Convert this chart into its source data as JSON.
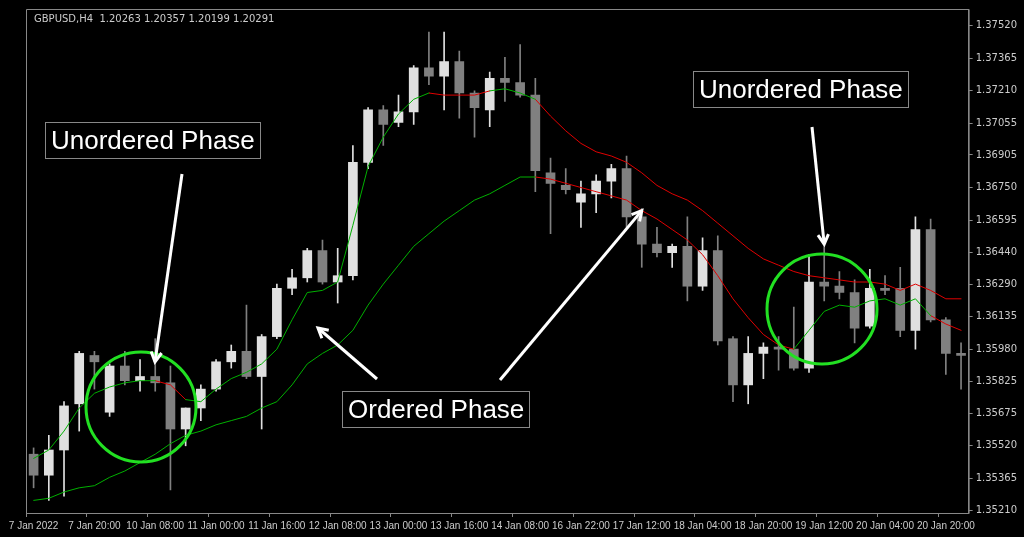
{
  "chart_data": {
    "type": "candlestick",
    "title": "GBPUSD,H4  1.20263 1.20357 1.20199 1.20291",
    "categories": [
      "7 Jan 2022",
      null,
      null,
      null,
      "7 Jan 20:00",
      null,
      null,
      null,
      "10 Jan 08:00",
      null,
      null,
      null,
      "11 Jan 00:00",
      null,
      null,
      null,
      "11 Jan 16:00",
      null,
      null,
      null,
      "12 Jan 08:00",
      null,
      null,
      null,
      "13 Jan 00:00",
      null,
      null,
      null,
      "13 Jan 16:00",
      null,
      null,
      null,
      "14 Jan 08:00",
      null,
      null,
      null,
      "16 Jan 22:00",
      null,
      null,
      null,
      "17 Jan 12:00",
      null,
      null,
      null,
      "18 Jan 04:00",
      null,
      null,
      null,
      "18 Jan 20:00",
      null,
      null,
      null,
      "19 Jan 12:00",
      null,
      null,
      null,
      "20 Jan 04:00",
      null,
      null,
      null,
      "20 Jan 20:00",
      null
    ],
    "ohlc": [
      [
        1.3548,
        1.3551,
        1.3532,
        1.3538
      ],
      [
        1.3538,
        1.3557,
        1.3526,
        1.355
      ],
      [
        1.355,
        1.3573,
        1.3528,
        1.3571
      ],
      [
        1.3572,
        1.3597,
        1.3559,
        1.3596
      ],
      [
        1.3595,
        1.3597,
        1.3579,
        1.3592
      ],
      [
        1.3568,
        1.3591,
        1.3566,
        1.359
      ],
      [
        1.359,
        1.3597,
        1.3581,
        1.3583
      ],
      [
        1.3583,
        1.3593,
        1.3578,
        1.3585
      ],
      [
        1.3585,
        1.3603,
        1.3578,
        1.3582
      ],
      [
        1.3582,
        1.359,
        1.3531,
        1.356
      ],
      [
        1.356,
        1.357,
        1.3552,
        1.357
      ],
      [
        1.357,
        1.3581,
        1.3564,
        1.3579
      ],
      [
        1.3579,
        1.3593,
        1.3578,
        1.3592
      ],
      [
        1.3592,
        1.36,
        1.3589,
        1.3597
      ],
      [
        1.3597,
        1.3619,
        1.3584,
        1.3585
      ],
      [
        1.3585,
        1.3605,
        1.356,
        1.3604
      ],
      [
        1.3604,
        1.3629,
        1.3603,
        1.3627
      ],
      [
        1.3627,
        1.3636,
        1.3624,
        1.3632
      ],
      [
        1.3632,
        1.3646,
        1.363,
        1.3645
      ],
      [
        1.3645,
        1.365,
        1.3629,
        1.363
      ],
      [
        1.363,
        1.3646,
        1.362,
        1.3633
      ],
      [
        1.3633,
        1.3695,
        1.3631,
        1.3687
      ],
      [
        1.3687,
        1.3713,
        1.3684,
        1.3712
      ],
      [
        1.3712,
        1.3714,
        1.3695,
        1.3705
      ],
      [
        1.3706,
        1.3719,
        1.3704,
        1.3711
      ],
      [
        1.3711,
        1.3733,
        1.3705,
        1.3732
      ],
      [
        1.3732,
        1.3749,
        1.3724,
        1.3728
      ],
      [
        1.3728,
        1.3749,
        1.3712,
        1.3735
      ],
      [
        1.3735,
        1.374,
        1.3708,
        1.372
      ],
      [
        1.372,
        1.3721,
        1.3699,
        1.3713
      ],
      [
        1.3712,
        1.373,
        1.3704,
        1.3727
      ],
      [
        1.3727,
        1.3737,
        1.3716,
        1.3725
      ],
      [
        1.3725,
        1.3743,
        1.3718,
        1.3719
      ],
      [
        1.3719,
        1.3727,
        1.3673,
        1.3683
      ],
      [
        1.3682,
        1.3689,
        1.3653,
        1.3677
      ],
      [
        1.3676,
        1.3684,
        1.3672,
        1.3674
      ],
      [
        1.3668,
        1.3678,
        1.3656,
        1.3672
      ],
      [
        1.3672,
        1.3681,
        1.3663,
        1.3678
      ],
      [
        1.3678,
        1.3686,
        1.367,
        1.3684
      ],
      [
        1.3684,
        1.369,
        1.3656,
        1.3661
      ],
      [
        1.3661,
        1.3665,
        1.3637,
        1.3648
      ],
      [
        1.3648,
        1.3656,
        1.3642,
        1.3644
      ],
      [
        1.3644,
        1.3648,
        1.3637,
        1.3647
      ],
      [
        1.3647,
        1.3661,
        1.3621,
        1.3628
      ],
      [
        1.3628,
        1.3651,
        1.3626,
        1.3645
      ],
      [
        1.3645,
        1.3652,
        1.36,
        1.3602
      ],
      [
        1.3603,
        1.3604,
        1.3573,
        1.3581
      ],
      [
        1.3581,
        1.3604,
        1.3572,
        1.3596
      ],
      [
        1.3596,
        1.3601,
        1.3584,
        1.3599
      ],
      [
        1.3599,
        1.3604,
        1.3588,
        1.3598
      ],
      [
        1.3598,
        1.3618,
        1.3588,
        1.3589
      ],
      [
        1.3589,
        1.3643,
        1.3587,
        1.363
      ],
      [
        1.363,
        1.3648,
        1.3621,
        1.3628
      ],
      [
        1.3628,
        1.3635,
        1.3622,
        1.3625
      ],
      [
        1.3625,
        1.3631,
        1.3601,
        1.3608
      ],
      [
        1.3609,
        1.3636,
        1.3608,
        1.3627
      ],
      [
        1.3627,
        1.3633,
        1.3624,
        1.3626
      ],
      [
        1.3627,
        1.3637,
        1.3604,
        1.3607
      ],
      [
        1.3607,
        1.3661,
        1.3598,
        1.3655
      ],
      [
        1.3655,
        1.366,
        1.3611,
        1.3612
      ],
      [
        1.3612,
        1.3613,
        1.3586,
        1.3596
      ],
      [
        1.3596,
        1.3601,
        1.3579,
        1.3595
      ]
    ],
    "colors": [
      "#808080",
      "#e0e0e0",
      "#e0e0e0",
      "#e0e0e0",
      "#808080",
      "#e0e0e0",
      "#808080",
      "#e0e0e0",
      "#808080",
      "#808080",
      "#e0e0e0",
      "#e0e0e0",
      "#e0e0e0",
      "#e0e0e0",
      "#808080",
      "#e0e0e0",
      "#e0e0e0",
      "#e0e0e0",
      "#e0e0e0",
      "#808080",
      "#e0e0e0",
      "#e0e0e0",
      "#e0e0e0",
      "#808080",
      "#e0e0e0",
      "#e0e0e0",
      "#808080",
      "#e0e0e0",
      "#808080",
      "#808080",
      "#e0e0e0",
      "#808080",
      "#808080",
      "#808080",
      "#808080",
      "#808080",
      "#e0e0e0",
      "#e0e0e0",
      "#e0e0e0",
      "#808080",
      "#808080",
      "#808080",
      "#e0e0e0",
      "#808080",
      "#e0e0e0",
      "#808080",
      "#808080",
      "#e0e0e0",
      "#e0e0e0",
      "#808080",
      "#808080",
      "#e0e0e0",
      "#808080",
      "#808080",
      "#808080",
      "#e0e0e0",
      "#808080",
      "#808080",
      "#e0e0e0",
      "#808080",
      "#808080",
      "#808080"
    ],
    "series": [
      {
        "type": "line",
        "color": "#00b000",
        "values": [
          1.3546,
          1.355,
          1.3559,
          1.357,
          1.3577,
          1.358,
          1.3582,
          1.3583,
          1.3583,
          null,
          1.3574,
          1.3573,
          1.3579,
          1.3584,
          1.3587,
          1.3591,
          1.3598,
          1.3612,
          1.3625,
          1.3626,
          1.363,
          1.3657,
          1.3685,
          1.3699,
          1.371,
          1.3717,
          1.372,
          null,
          null,
          null,
          1.3721,
          1.3722,
          1.372,
          1.3717,
          null,
          null,
          null,
          null,
          null,
          null,
          null,
          null,
          null,
          null,
          null,
          null,
          null,
          null,
          null,
          null,
          null,
          null,
          null,
          null,
          null,
          null,
          null,
          null,
          null,
          null,
          null,
          null
        ]
      },
      {
        "type": "line",
        "color": "#e00000",
        "values": [
          null,
          null,
          null,
          null,
          null,
          null,
          null,
          null,
          1.3583,
          1.3581,
          1.3574,
          null,
          null,
          null,
          null,
          null,
          null,
          null,
          null,
          null,
          null,
          null,
          null,
          null,
          null,
          null,
          1.372,
          1.3719,
          1.3719,
          1.3719,
          1.3721,
          null,
          null,
          1.3717,
          1.3709,
          1.3702,
          1.3696,
          1.3692,
          1.369,
          1.3687,
          1.3682,
          1.3676,
          1.3672,
          1.3669,
          1.3664,
          1.3658,
          1.3652,
          1.3646,
          1.3641,
          1.3638,
          1.3635,
          1.3633,
          1.3632,
          1.3631,
          1.363,
          1.363,
          1.3629,
          1.3626,
          1.3629,
          1.3626,
          1.3622,
          1.3622
        ]
      },
      {
        "type": "line",
        "color": "#00b000",
        "values": [
          1.3526,
          1.3527,
          1.353,
          1.3532,
          1.3533,
          1.3537,
          1.354,
          1.3544,
          1.3548,
          1.3553,
          1.3557,
          1.3559,
          1.3562,
          1.3564,
          1.3566,
          1.357,
          1.3573,
          1.3581,
          1.3591,
          1.3596,
          1.36,
          1.3607,
          1.3619,
          1.3629,
          1.3638,
          1.3647,
          1.3653,
          1.3659,
          1.3664,
          1.3669,
          1.3672,
          1.3676,
          1.368,
          1.368,
          null,
          null,
          null,
          null,
          null,
          null,
          null,
          null,
          null,
          null,
          null,
          null,
          null,
          null,
          null,
          null,
          1.3598,
          1.3607,
          1.3616,
          1.3619,
          1.3618,
          1.3621,
          1.3622,
          1.3619,
          1.3622,
          1.3614,
          null,
          null
        ]
      },
      {
        "type": "line",
        "color": "#e00000",
        "values": [
          null,
          null,
          null,
          null,
          null,
          null,
          null,
          null,
          null,
          null,
          null,
          null,
          null,
          null,
          null,
          null,
          null,
          null,
          null,
          null,
          null,
          null,
          null,
          null,
          null,
          null,
          null,
          null,
          null,
          null,
          null,
          null,
          null,
          1.368,
          1.3679,
          1.3677,
          1.3675,
          1.3673,
          1.3671,
          1.3669,
          1.3664,
          1.366,
          1.3655,
          1.365,
          1.3643,
          1.3633,
          1.3622,
          1.3613,
          1.3605,
          1.36,
          1.3598,
          null,
          null,
          null,
          null,
          null,
          null,
          null,
          null,
          1.3614,
          1.361,
          1.3607
        ]
      }
    ],
    "ylim": [
      1.352,
      1.376
    ],
    "yticks": [
      {
        "value": 1.3752,
        "label": "1.37520"
      },
      {
        "value": 1.37365,
        "label": "1.37365"
      },
      {
        "value": 1.3721,
        "label": "1.37210"
      },
      {
        "value": 1.37055,
        "label": "1.37055"
      },
      {
        "value": 1.36905,
        "label": "1.36905"
      },
      {
        "value": 1.3675,
        "label": "1.36750"
      },
      {
        "value": 1.36595,
        "label": "1.36595"
      },
      {
        "value": 1.3644,
        "label": "1.36440"
      },
      {
        "value": 1.3629,
        "label": "1.36290"
      },
      {
        "value": 1.36135,
        "label": "1.36135"
      },
      {
        "value": 1.3598,
        "label": "1.35980"
      },
      {
        "value": 1.35825,
        "label": "1.35825"
      },
      {
        "value": 1.35675,
        "label": "1.35675"
      },
      {
        "value": 1.3552,
        "label": "1.35520"
      },
      {
        "value": 1.35365,
        "label": "1.35365"
      },
      {
        "value": 1.3521,
        "label": "1.35210"
      }
    ],
    "marker": "none",
    "annotations": [
      {
        "text": "Unordered Phase",
        "y": 1.3592
      },
      {
        "text": "Ordered Phase",
        "x": "17 Jan 12:00",
        "y": 1.3664
      },
      {
        "text": "Unordered Phase",
        "x": "19 Jan 12:00",
        "y": 1.3648
      }
    ]
  }
}
